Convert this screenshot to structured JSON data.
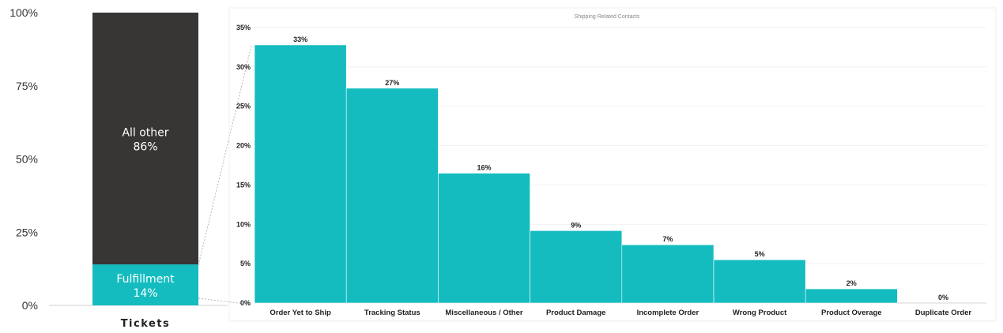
{
  "chart_data": [
    {
      "type": "bar",
      "stacked": true,
      "categories": [
        "Tickets"
      ],
      "xlabel": "Tickets",
      "ylim": [
        0,
        100
      ],
      "yticks": [
        "0%",
        "25%",
        "50%",
        "75%",
        "100%"
      ],
      "series": [
        {
          "name": "Fulfillment",
          "values": [
            14
          ],
          "label": "14%",
          "color": "#14bcc0"
        },
        {
          "name": "All other",
          "values": [
            86
          ],
          "label": "86%",
          "color": "#383635"
        }
      ]
    },
    {
      "type": "bar",
      "title": "Shipping Related Contacts",
      "color": "#14bcc0",
      "ylim": [
        0,
        35
      ],
      "yticks": [
        "0%",
        "5%",
        "10%",
        "15%",
        "20%",
        "25%",
        "30%",
        "35%"
      ],
      "categories": [
        "Order Yet to Ship",
        "Tracking Status",
        "Miscellaneous / Other",
        "Product Damage",
        "Incomplete Order",
        "Wrong Product",
        "Product Overage",
        "Duplicate Order"
      ],
      "values": [
        32.8,
        27.3,
        16.5,
        9.2,
        7.4,
        5.5,
        1.8,
        0
      ],
      "data_labels": [
        "33%",
        "27%",
        "16%",
        "9%",
        "7%",
        "5%",
        "2%",
        "0%"
      ]
    }
  ]
}
